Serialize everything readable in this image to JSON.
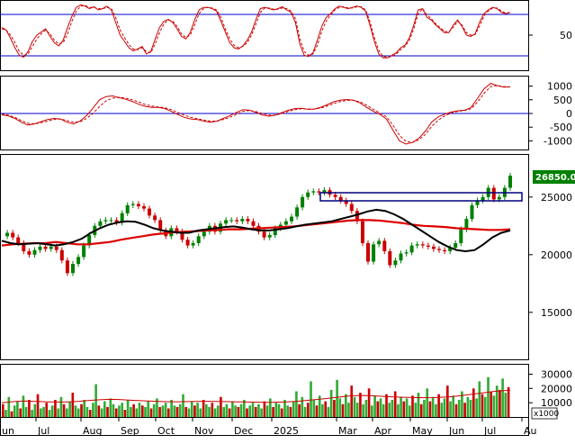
{
  "chart_data": [
    {
      "type": "line",
      "panel": "stochastic-oscillator",
      "y_ticks": [
        "50"
      ],
      "tick_values": [
        50
      ],
      "ylim": [
        0,
        100
      ],
      "reference_lines": [
        80,
        20
      ],
      "grid": false,
      "series": [
        {
          "values": [
            62,
            58,
            45,
            30,
            18,
            15,
            24,
            40,
            50,
            55,
            60,
            48,
            38,
            33,
            42,
            62,
            80,
            94,
            98,
            96,
            92,
            95,
            90,
            92,
            96,
            90,
            70,
            50,
            40,
            30,
            25,
            28,
            32,
            20,
            24,
            44,
            62,
            72,
            75,
            70,
            60,
            48,
            44,
            54,
            74,
            90,
            94,
            94,
            92,
            88,
            72,
            55,
            38,
            30,
            28,
            33,
            42,
            55,
            75,
            92,
            94,
            92,
            90,
            92,
            95,
            90,
            86,
            70,
            36,
            18,
            16,
            22,
            42,
            64,
            78,
            84,
            92,
            96,
            94,
            92,
            94,
            96,
            94,
            88,
            66,
            40,
            20,
            14,
            14,
            18,
            22,
            30,
            34,
            46,
            66,
            90,
            92,
            78,
            74,
            66,
            60,
            54,
            54,
            66,
            74,
            64,
            50,
            48,
            52,
            70,
            84,
            90,
            94,
            92,
            86,
            84,
            86
          ]
        },
        {
          "values": [
            60,
            58,
            50,
            38,
            24,
            18,
            20,
            32,
            44,
            52,
            58,
            52,
            42,
            36,
            38,
            52,
            72,
            88,
            96,
            97,
            94,
            94,
            92,
            92,
            94,
            92,
            78,
            58,
            46,
            35,
            28,
            27,
            30,
            24,
            22,
            36,
            54,
            68,
            74,
            72,
            64,
            52,
            46,
            50,
            66,
            84,
            92,
            94,
            93,
            90,
            78,
            60,
            44,
            34,
            30,
            32,
            38,
            50,
            68,
            86,
            93,
            93,
            91,
            91,
            93,
            92,
            88,
            76,
            44,
            24,
            18,
            20,
            34,
            56,
            72,
            82,
            90,
            94,
            95,
            93,
            93,
            95,
            95,
            90,
            72,
            46,
            26,
            16,
            15,
            16,
            20,
            27,
            32,
            42,
            60,
            84,
            92,
            82,
            76,
            68,
            62,
            56,
            55,
            62,
            72,
            66,
            54,
            50,
            51,
            64,
            80,
            88,
            93,
            93,
            88,
            85,
            86
          ]
        }
      ]
    },
    {
      "type": "line",
      "panel": "macd",
      "y_ticks": [
        "1000",
        "500",
        "0",
        "-500",
        "-1000"
      ],
      "tick_values": [
        1000,
        500,
        0,
        -500,
        -1000
      ],
      "ylim": [
        -1250,
        1250
      ],
      "reference_lines": [
        0
      ],
      "grid": false,
      "series": [
        {
          "values": [
            -50,
            -90,
            -180,
            -320,
            -420,
            -380,
            -300,
            -220,
            -180,
            -200,
            -320,
            -380,
            -280,
            -80,
            200,
            500,
            620,
            640,
            580,
            520,
            440,
            340,
            260,
            220,
            220,
            180,
            80,
            -40,
            -140,
            -200,
            -220,
            -280,
            -320,
            -280,
            -180,
            -80,
            40,
            140,
            120,
            40,
            -60,
            -100,
            -60,
            40,
            120,
            180,
            190,
            150,
            160,
            230,
            330,
            430,
            490,
            510,
            480,
            380,
            220,
            80,
            -30,
            -200,
            -600,
            -1000,
            -1120,
            -1060,
            -900,
            -640,
            -300,
            -120,
            -20,
            60,
            100,
            120,
            220,
            560,
            900,
            1100,
            1020,
            960,
            970
          ]
        },
        {
          "values": [
            -20,
            -60,
            -140,
            -260,
            -360,
            -380,
            -340,
            -280,
            -220,
            -200,
            -260,
            -320,
            -300,
            -180,
            0,
            260,
            460,
            560,
            590,
            560,
            500,
            420,
            330,
            270,
            240,
            210,
            140,
            40,
            -60,
            -140,
            -190,
            -240,
            -280,
            -280,
            -220,
            -140,
            -30,
            80,
            110,
            70,
            0,
            -60,
            -60,
            0,
            80,
            140,
            170,
            160,
            160,
            200,
            280,
            370,
            440,
            480,
            480,
            420,
            300,
            150,
            20,
            -120,
            -420,
            -800,
            -1020,
            -1060,
            -960,
            -760,
            -460,
            -240,
            -80,
            20,
            80,
            110,
            170,
            420,
            740,
            980,
            1020,
            980,
            970
          ]
        }
      ]
    },
    {
      "type": "line",
      "panel": "price",
      "y_ticks": [
        "25000",
        "20000",
        "15000"
      ],
      "tick_values": [
        25000,
        20000,
        15000
      ],
      "ylim": [
        11000,
        28500
      ],
      "grid": false,
      "last_price": "26850.00",
      "x_labels": [
        "un",
        "Jul",
        "Aug",
        "Sep",
        "Oct",
        "Nov",
        "Dec",
        "2025",
        "Mar",
        "Apr",
        "May",
        "Jun",
        "Jul",
        "Au"
      ],
      "series": [
        {
          "values": [
            21600,
            21900,
            21500,
            21000,
            20300,
            20000,
            20400,
            20700,
            20500,
            20700,
            20400,
            19500,
            18400,
            19200,
            19800,
            20800,
            21700,
            22500,
            22900,
            23000,
            23000,
            22800,
            23600,
            24300,
            24400,
            24200,
            24000,
            23400,
            23000,
            22100,
            21600,
            22300,
            22000,
            21300,
            20800,
            21000,
            21600,
            22000,
            22500,
            22000,
            22700,
            23000,
            23000,
            22900,
            23100,
            22900,
            22500,
            22000,
            21500,
            21700,
            22300,
            22600,
            22900,
            23300,
            24100,
            25000,
            25400,
            25500,
            25400,
            25600,
            25200,
            25000,
            24700,
            24400,
            23800,
            22900,
            21000,
            19400,
            20900,
            21200,
            20300,
            19100,
            19500,
            20100,
            20200,
            20800,
            20900,
            20800,
            20700,
            20500,
            20400,
            20300,
            20600,
            21000,
            22200,
            23100,
            24300,
            24700,
            25000,
            25800,
            24800,
            25000,
            25800,
            26850
          ]
        },
        {
          "values": [
            21200,
            21000,
            20900,
            20950,
            21000,
            20900,
            20800,
            20900,
            21100,
            21400,
            21900,
            22300,
            22600,
            22800,
            22900,
            22850,
            22600,
            22300,
            22100,
            22000,
            21900,
            21900,
            22100,
            22200,
            22300,
            22400,
            22450,
            22350,
            22200,
            22100,
            22100,
            22200,
            22300,
            22450,
            22600,
            22700,
            22800,
            22900,
            23100,
            23300,
            23500,
            23750,
            23900,
            23800,
            23500,
            23100,
            22600,
            22100,
            21600,
            21100,
            20700,
            20400,
            20300,
            20400,
            20900,
            21500,
            21900,
            22100
          ]
        },
        {
          "values": [
            20800,
            20900,
            20950,
            21000,
            21000,
            21100,
            21000,
            20900,
            20900,
            21000,
            21100,
            21300,
            21450,
            21600,
            21750,
            21850,
            21950,
            22000,
            22050,
            22100,
            22150,
            22200,
            22200,
            22250,
            22300,
            22350,
            22400,
            22450,
            22550,
            22650,
            22750,
            22850,
            22950,
            23000,
            23000,
            22950,
            22850,
            22750,
            22600,
            22500,
            22450,
            22400,
            22300,
            22250,
            22200,
            22150,
            22150,
            22200
          ]
        }
      ]
    },
    {
      "type": "bar",
      "panel": "volume",
      "y_ticks": [
        "30000",
        "20000",
        "10000"
      ],
      "tick_values": [
        30000,
        20000,
        10000
      ],
      "ylim": [
        0,
        36000
      ],
      "unit": "x1000",
      "grid": false,
      "values": [
        9000,
        5000,
        14000,
        4000,
        8000,
        11000,
        6000,
        15000,
        7000,
        12000,
        5000,
        9000,
        16000,
        6000,
        7000,
        10000,
        5000,
        8000,
        12000,
        6000,
        14000,
        9000,
        6000,
        11000,
        17000,
        8000,
        6000,
        9000,
        12000,
        7000,
        5000,
        10000,
        23000,
        8000,
        6000,
        11000,
        7000,
        13000,
        9000,
        6000,
        8000,
        10000,
        5000,
        12000,
        7000,
        9000,
        6000,
        10000,
        8000,
        7000,
        11000,
        6000,
        9000,
        13000,
        7000,
        8000,
        10000,
        6000,
        12000,
        8000,
        7000,
        9000,
        16000,
        7000,
        6000,
        11000,
        8000,
        10000,
        6000,
        12000,
        9000,
        7000,
        10000,
        6000,
        8000,
        14000,
        7000,
        9000,
        6000,
        11000,
        8000,
        7000,
        9000,
        12000,
        6000,
        8000,
        10000,
        7000,
        9000,
        6000,
        11000,
        8000,
        13000,
        7000,
        10000,
        9000,
        6000,
        12000,
        8000,
        7000,
        11000,
        18000,
        9000,
        14000,
        7000,
        10000,
        25000,
        12000,
        8000,
        15000,
        9000,
        11000,
        7000,
        19000,
        12000,
        26000,
        13000,
        9000,
        16000,
        10000,
        22000,
        14000,
        10000,
        17000,
        9000,
        12000,
        20000,
        8000,
        15000,
        11000,
        13000,
        9000,
        16000,
        10000,
        12000,
        18000,
        9000,
        14000,
        11000,
        13000,
        8000,
        15000,
        10000,
        17000,
        9000,
        12000,
        20000,
        11000,
        14000,
        9000,
        16000,
        10000,
        13000,
        22000,
        11000,
        15000,
        9000,
        12000,
        18000,
        10000,
        14000,
        12000,
        20000,
        13000,
        25000,
        16000,
        14000,
        28000,
        18000,
        15000,
        22000,
        19000,
        27000,
        17000,
        21000
      ],
      "series": [
        {
          "values": [
            10000,
            10500,
            11000,
            11200,
            11000,
            10800,
            10600,
            10500,
            10500,
            10700,
            11000,
            11400,
            11900,
            12200,
            12400,
            12300,
            12000,
            11700,
            11400,
            11200,
            11000,
            10800,
            10700,
            10700,
            10800,
            10900,
            11000,
            11000,
            10900,
            10800,
            10700,
            10600,
            10500,
            10400,
            10300,
            10300,
            10400,
            10600,
            10900,
            11300,
            11800,
            12300,
            12900,
            13500,
            14100,
            14700,
            15000,
            15100,
            14900,
            14600,
            14300,
            14000,
            13800,
            13700,
            13600,
            13500,
            13600,
            13800,
            14100,
            14600,
            15200,
            15900,
            16600,
            17300,
            18000,
            18400,
            18700
          ]
        }
      ]
    }
  ]
}
